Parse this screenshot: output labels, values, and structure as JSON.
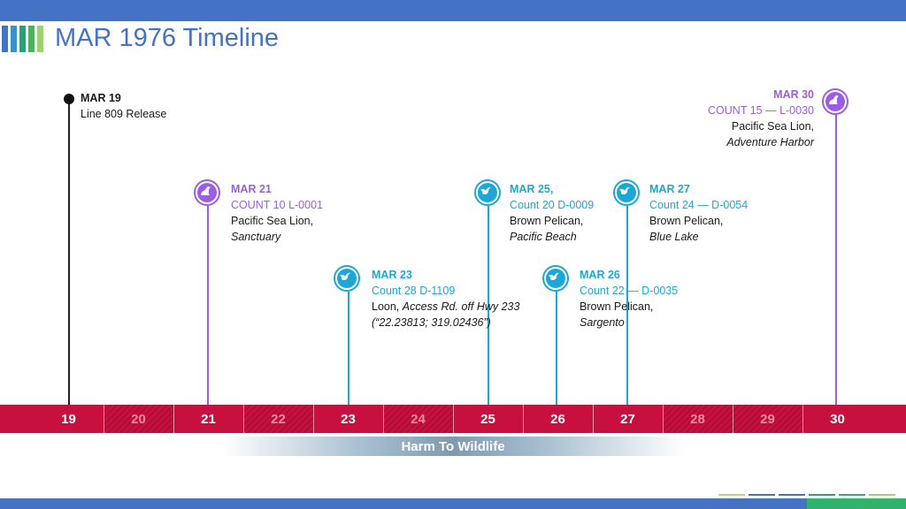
{
  "header": {
    "title": "MAR 1976 Timeline"
  },
  "colors": {
    "accent_blue": "#4472c4",
    "axis_red": "#c8103e",
    "purple": "#9b5de5",
    "cyan": "#1ba7d8"
  },
  "events": [
    {
      "date": "MAR 19",
      "line2": "Line 809 Release",
      "icon": "dot"
    },
    {
      "date": "MAR 21",
      "count": "COUNT 10 L-0001",
      "species": "Pacific Sea Lion,",
      "location": "Sanctuary",
      "icon": "sea-lion-icon"
    },
    {
      "date": "MAR 23",
      "count": "Count 28 D-1109",
      "species": "Loon, ",
      "location": "Access Rd. off Hwy 233",
      "coords": "(“22.23813; 319.02436”)",
      "icon": "bird-icon"
    },
    {
      "date": "MAR 25,",
      "count": "Count 20 D-0009",
      "species": "Brown Pelican,",
      "location": "Pacific Beach",
      "icon": "bird-icon"
    },
    {
      "date": "MAR 26",
      "count": "Count 22 — D-0035",
      "species": "Brown Pelican,",
      "location": "Sargento",
      "icon": "bird-icon"
    },
    {
      "date": "MAR 27",
      "count": "Count 24 — D-0054",
      "species": "Brown Pelican,",
      "location": "Blue Lake",
      "icon": "bird-icon"
    },
    {
      "date": "MAR 30",
      "count": "COUNT 15 — L-0030",
      "species": "Pacific Sea Lion,",
      "location": "Adventure Harbor",
      "icon": "sea-lion-icon"
    }
  ],
  "axis": {
    "ticks": [
      "19",
      "20",
      "21",
      "22",
      "23",
      "24",
      "25",
      "26",
      "27",
      "28",
      "29",
      "30"
    ]
  },
  "range": {
    "label": "Harm To Wildlife"
  }
}
